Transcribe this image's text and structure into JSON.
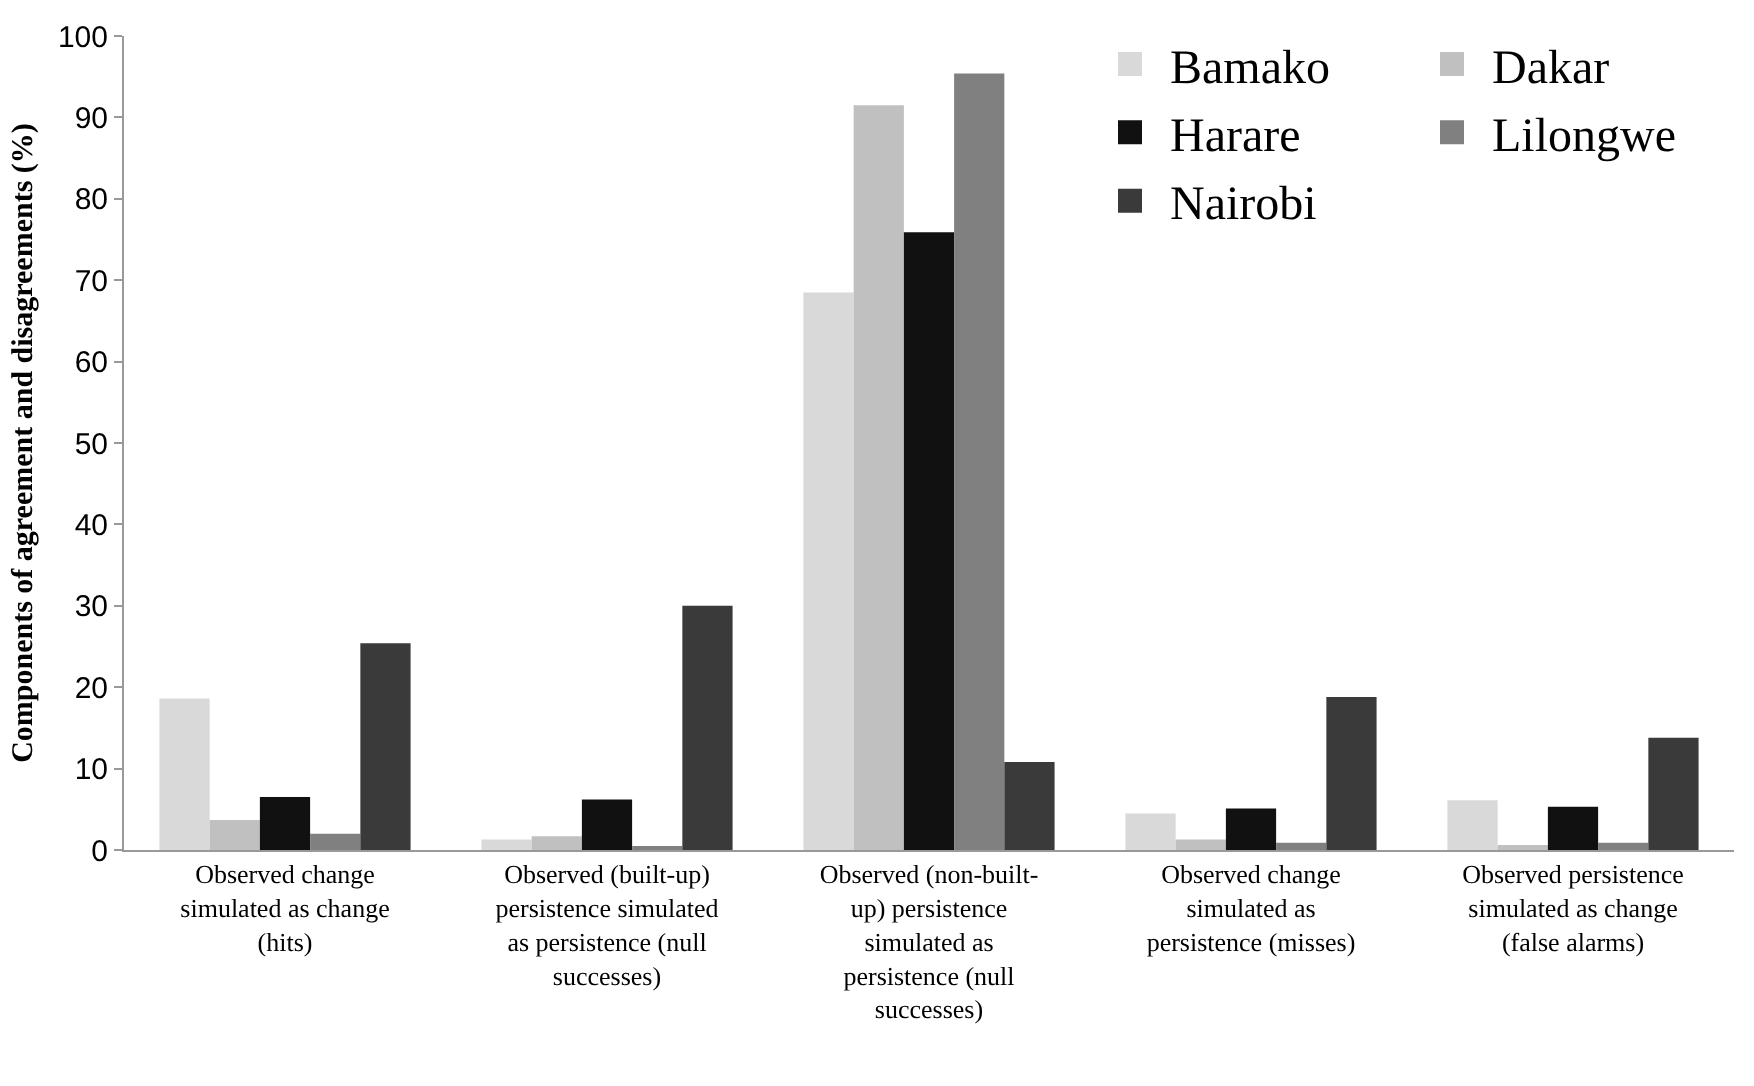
{
  "chart_data": {
    "type": "bar",
    "ylabel": "Components of agreement and disagreements (%)",
    "categories": [
      "Observed change simulated as change (hits)",
      "Observed (built-up) persistence simulated as persistence (null successes)",
      "Observed (non-built-up) persistence simulated as persistence (null successes)",
      "Observed change simulated as persistence (misses)",
      "Observed persistence simulated as change (false alarms)"
    ],
    "series": [
      {
        "name": "Bamako",
        "color": "#d9d9d9",
        "values": [
          18.6,
          1.3,
          68.5,
          4.5,
          6.1
        ]
      },
      {
        "name": "Dakar",
        "color": "#c0c0c0",
        "values": [
          3.7,
          1.7,
          91.5,
          1.3,
          0.6
        ]
      },
      {
        "name": "Harare",
        "color": "#111111",
        "values": [
          6.5,
          6.2,
          75.9,
          5.1,
          5.3
        ]
      },
      {
        "name": "Lilongwe",
        "color": "#808080",
        "values": [
          2.0,
          0.3,
          95.4,
          0.9,
          0.9
        ]
      },
      {
        "name": "Nairobi",
        "color": "#3a3a3a",
        "values": [
          25.4,
          30.0,
          10.8,
          18.8,
          13.8
        ]
      }
    ],
    "ylim": [
      0,
      100
    ],
    "yticks": [
      0,
      10,
      20,
      30,
      40,
      50,
      60,
      70,
      80,
      90,
      100
    ],
    "grid": false,
    "legend": "top right"
  }
}
